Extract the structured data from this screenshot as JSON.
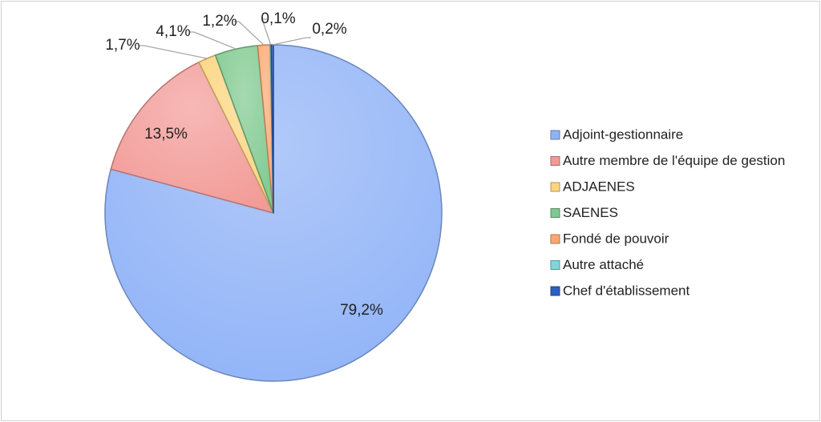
{
  "chart_data": {
    "type": "pie",
    "title": "",
    "legend_position": "right",
    "slices": [
      {
        "name": "Adjoint-gestionnaire",
        "value": 79.2,
        "label": "79,2%",
        "color": "#8fb2f7"
      },
      {
        "name": "Autre membre de l'équipe de gestion",
        "value": 13.5,
        "label": "13,5%",
        "color": "#f29a96"
      },
      {
        "name": "ADJAENES",
        "value": 1.7,
        "label": "1,7%",
        "color": "#fcd47c"
      },
      {
        "name": "SAENES",
        "value": 4.1,
        "label": "4,1%",
        "color": "#7fc98e"
      },
      {
        "name": "Fondé de pouvoir",
        "value": 1.2,
        "label": "1,2%",
        "color": "#fba870"
      },
      {
        "name": "Autre attaché",
        "value": 0.1,
        "label": "0,1%",
        "color": "#7fd6dc"
      },
      {
        "name": "Chef d'établissement",
        "value": 0.2,
        "label": "0,2%",
        "color": "#2b5fc2"
      }
    ]
  }
}
